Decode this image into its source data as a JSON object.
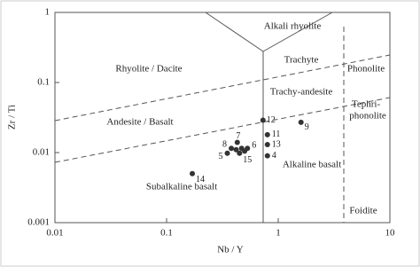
{
  "chart_data": {
    "type": "scatter",
    "x_label": "Nb / Y",
    "y_label": "Zr / Ti",
    "xlim": [
      0.01,
      10
    ],
    "ylim": [
      0.001,
      1
    ],
    "xscale": "log",
    "yscale": "log",
    "xticks": [
      0.01,
      0.1,
      1,
      10
    ],
    "yticks": [
      0.001,
      0.01,
      0.1,
      1
    ],
    "regions": [
      "Alkali rhyolite",
      "Rhyolite / Dacite",
      "Trachyte",
      "Phonolite",
      "Tephri-",
      "phonolite",
      "Trachy-andesite",
      "Andesite / Basalt",
      "Alkaline basalt",
      "Subalkaline basalt",
      "Foidite"
    ],
    "series": [
      {
        "color": "#333333",
        "x": [
          0.73,
          1.6,
          0.8,
          0.8,
          0.8,
          0.43,
          0.38,
          0.53,
          0.35,
          0.45,
          0.17,
          0.42,
          0.47,
          0.5
        ],
        "y": [
          0.029,
          0.027,
          0.018,
          0.013,
          0.009,
          0.014,
          0.0115,
          0.0115,
          0.0098,
          0.0098,
          0.005,
          0.011,
          0.0115,
          0.0105
        ],
        "labels": [
          "12",
          "9",
          "11",
          "13",
          "4",
          "7",
          "8",
          "6",
          "5",
          "15",
          "14",
          null,
          null,
          null
        ]
      }
    ]
  }
}
